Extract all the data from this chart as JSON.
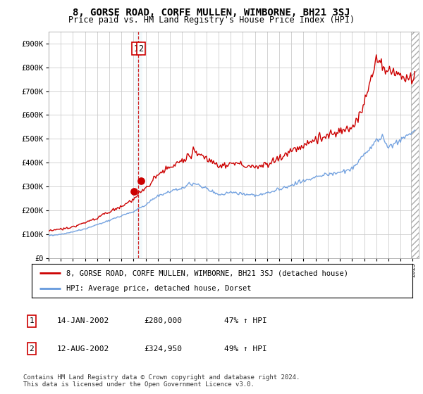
{
  "title": "8, GORSE ROAD, CORFE MULLEN, WIMBORNE, BH21 3SJ",
  "subtitle": "Price paid vs. HM Land Registry's House Price Index (HPI)",
  "legend_line1": "8, GORSE ROAD, CORFE MULLEN, WIMBORNE, BH21 3SJ (detached house)",
  "legend_line2": "HPI: Average price, detached house, Dorset",
  "footer": "Contains HM Land Registry data © Crown copyright and database right 2024.\nThis data is licensed under the Open Government Licence v3.0.",
  "table_rows": [
    {
      "num": "1",
      "date": "14-JAN-2002",
      "price": "£280,000",
      "hpi": "47% ↑ HPI"
    },
    {
      "num": "2",
      "date": "12-AUG-2002",
      "price": "£324,950",
      "hpi": "49% ↑ HPI"
    }
  ],
  "sale1_year": 2002.04,
  "sale1_price": 280000,
  "sale2_year": 2002.62,
  "sale2_price": 324950,
  "vline_year": 2002.35,
  "vband_x1": 2002.1,
  "vband_x2": 2002.7,
  "ylim_min": 0,
  "ylim_max": 950000,
  "xlim_min": 1995.0,
  "xlim_max": 2025.5,
  "hpi_color": "#6699dd",
  "price_color": "#cc0000",
  "vline_color": "#cc0000",
  "grid_color": "#cccccc",
  "background_color": "#ffffff",
  "annot_box_color": "#cc0000",
  "years_base": [
    1995,
    1996,
    1997,
    1998,
    1999,
    2000,
    2001,
    2002,
    2003,
    2004,
    2005,
    2006,
    2007,
    2008,
    2009,
    2010,
    2011,
    2012,
    2013,
    2014,
    2015,
    2016,
    2017,
    2018,
    2019,
    2020,
    2021,
    2022,
    2022.5,
    2023,
    2023.5,
    2024,
    2024.5,
    2025
  ],
  "hpi_vals": [
    95000,
    99000,
    110000,
    122000,
    140000,
    158000,
    178000,
    195000,
    225000,
    262000,
    278000,
    295000,
    315000,
    292000,
    265000,
    275000,
    268000,
    264000,
    272000,
    288000,
    308000,
    322000,
    340000,
    350000,
    360000,
    375000,
    430000,
    490000,
    510000,
    465000,
    480000,
    495000,
    510000,
    530000
  ],
  "price_vals": [
    115000,
    120000,
    132000,
    148000,
    170000,
    194000,
    218000,
    245000,
    295000,
    350000,
    378000,
    410000,
    450000,
    415000,
    385000,
    400000,
    390000,
    382000,
    395000,
    418000,
    452000,
    472000,
    498000,
    515000,
    528000,
    552000,
    640000,
    830000,
    820000,
    790000,
    780000,
    765000,
    760000,
    762000
  ]
}
